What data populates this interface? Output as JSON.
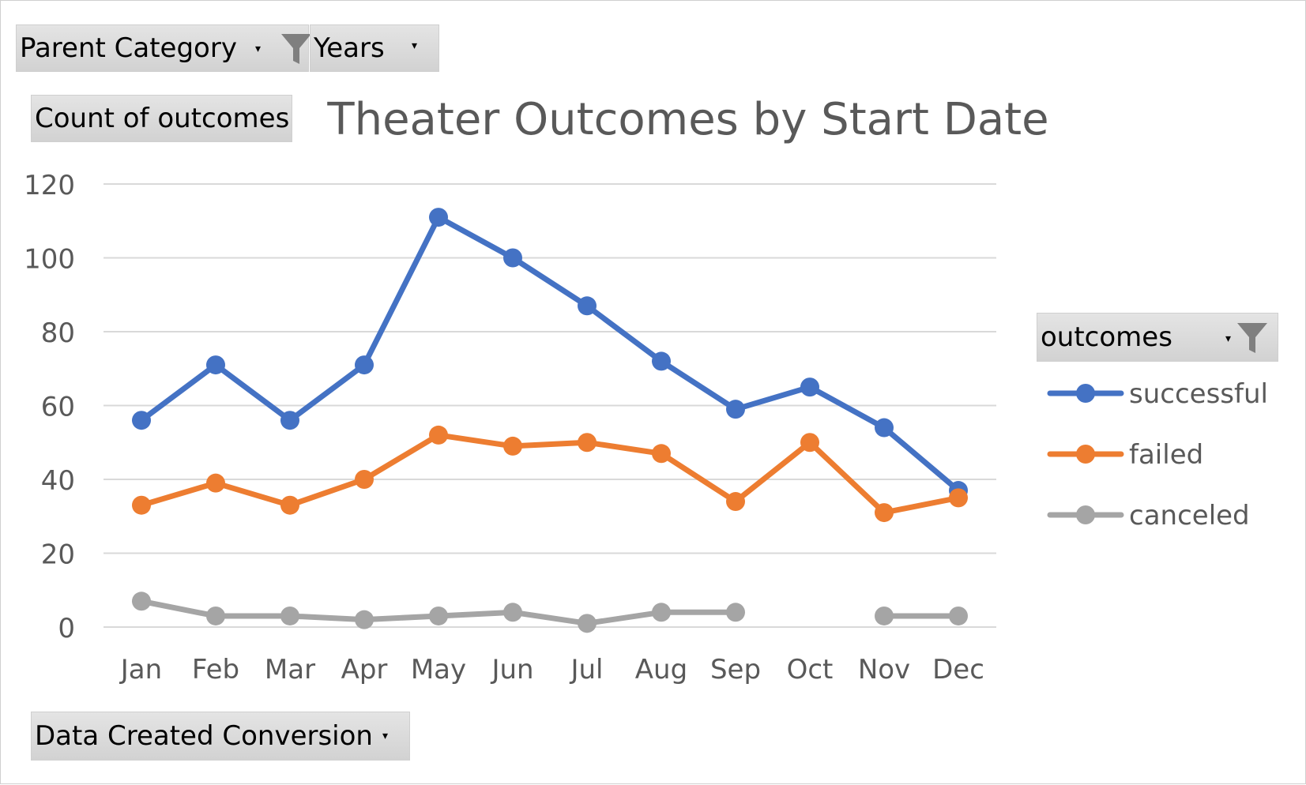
{
  "filters": {
    "parent_category": "Parent Category",
    "years": "Years",
    "count_field": "Count of outcomes",
    "legend_field": "outcomes",
    "axis_field": "Data Created Conversion"
  },
  "icons": {
    "filter": "funnel-icon",
    "dropdown": "dropdown-arrow-icon"
  },
  "chart_data": {
    "type": "line",
    "title": "Theater Outcomes by Start Date",
    "categories": [
      "Jan",
      "Feb",
      "Mar",
      "Apr",
      "May",
      "Jun",
      "Jul",
      "Aug",
      "Sep",
      "Oct",
      "Nov",
      "Dec"
    ],
    "ylim": [
      0,
      120
    ],
    "yticks": [
      0,
      20,
      40,
      60,
      80,
      100,
      120
    ],
    "grid": true,
    "legend_position": "right",
    "series": [
      {
        "name": "successful",
        "color": "#4472C4",
        "values": [
          56,
          71,
          56,
          71,
          111,
          100,
          87,
          72,
          59,
          65,
          54,
          37
        ]
      },
      {
        "name": "failed",
        "color": "#ED7D31",
        "values": [
          33,
          39,
          33,
          40,
          52,
          49,
          50,
          47,
          34,
          50,
          31,
          35
        ]
      },
      {
        "name": "canceled",
        "color": "#A5A5A5",
        "values": [
          7,
          3,
          3,
          2,
          3,
          4,
          1,
          4,
          4,
          null,
          3,
          3
        ]
      }
    ]
  }
}
